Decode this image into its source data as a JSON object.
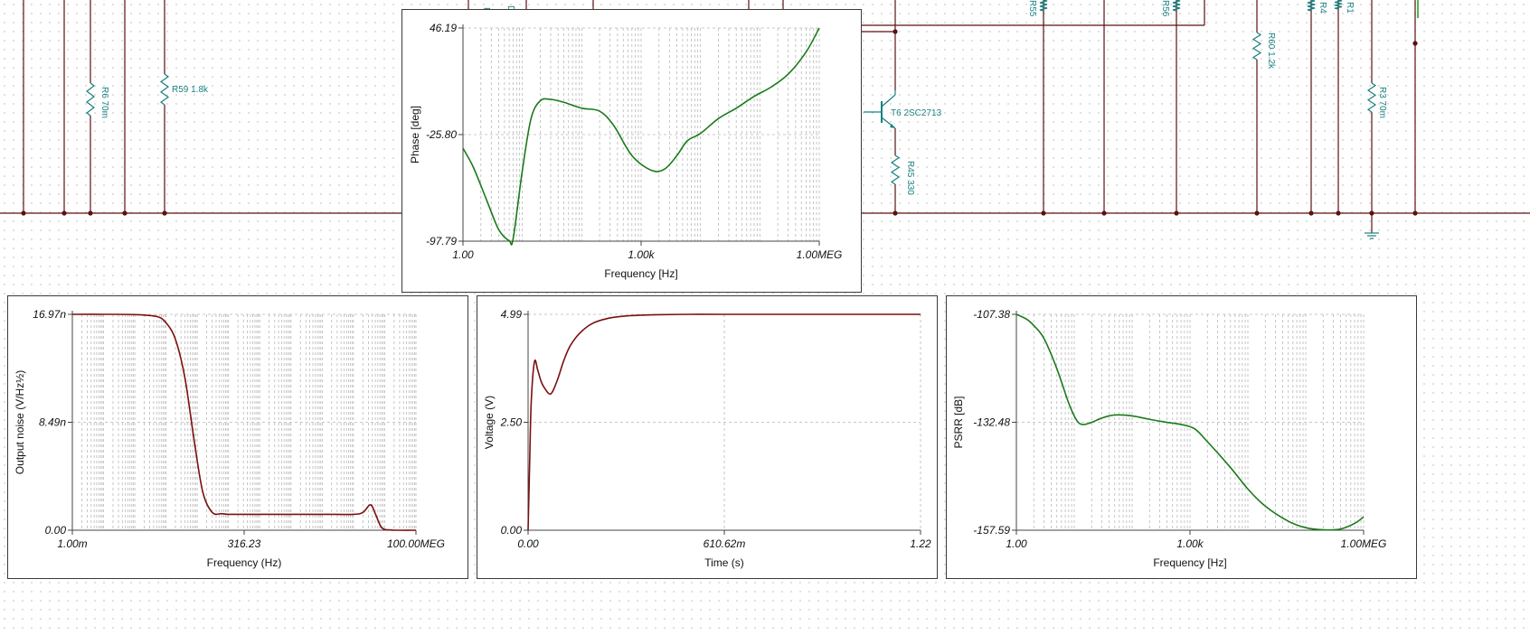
{
  "schematic": {
    "components": [
      {
        "id": "r6",
        "label": "R6 70m"
      },
      {
        "id": "r59",
        "label": "R59 1.8k"
      },
      {
        "id": "t6",
        "label": "T6 2SC2713"
      },
      {
        "id": "r45",
        "label": "R45 330"
      },
      {
        "id": "r60",
        "label": "R60 1.2k"
      },
      {
        "id": "r3",
        "label": "R3 70m"
      },
      {
        "id": "r55",
        "label": "R55"
      },
      {
        "id": "r56",
        "label": "R56"
      },
      {
        "id": "r4",
        "label": "R4"
      },
      {
        "id": "r1",
        "label": "R1"
      }
    ],
    "colors": {
      "wire": "#5c1010",
      "component": "#1a8080",
      "junction": "#5c1010"
    }
  },
  "chart_data": [
    {
      "id": "phase",
      "type": "line",
      "xscale": "log",
      "xlim": [
        1,
        1000000
      ],
      "ylim": [
        -97.79,
        46.19
      ],
      "xticks": [
        "1.00",
        "1.00k",
        "1.00MEG"
      ],
      "yticks": [
        "46.19",
        "-25.80",
        "-97.79"
      ],
      "xlabel": "Frequency [Hz]",
      "ylabel": "Phase [deg]",
      "color": "#1a7a1a",
      "series": [
        {
          "x": [
            1,
            1.5,
            2.5,
            4,
            6,
            7,
            10,
            14,
            20,
            30,
            50,
            100,
            200,
            350,
            700,
            1500,
            2500,
            4000,
            6000,
            10000,
            20000,
            40000,
            80000,
            150000,
            300000,
            600000,
            1000000
          ],
          "y": [
            -35,
            -48,
            -70,
            -90,
            -97.5,
            -96,
            -50,
            -15,
            -3,
            -2,
            -4,
            -8,
            -10,
            -20,
            -40,
            -50,
            -49,
            -40,
            -30,
            -25,
            -15,
            -8,
            0,
            6,
            15,
            30,
            46.19
          ]
        }
      ]
    },
    {
      "id": "noise",
      "type": "line",
      "xscale": "log",
      "xlim": [
        0.001,
        100000000
      ],
      "ylim": [
        0,
        16.97
      ],
      "xticks": [
        "1.00m",
        "316.23",
        "100.00MEG"
      ],
      "yticks": [
        "16.97n",
        "8.49n",
        "0.00"
      ],
      "xlabel": "Frequency (Hz)",
      "ylabel": "Output noise (V/Hz½)",
      "color": "#7a1010",
      "series": [
        {
          "x": [
            0.001,
            0.01,
            0.1,
            0.5,
            1,
            2,
            4,
            8,
            15,
            30,
            60,
            100,
            200,
            1000,
            10000,
            100000,
            1000000,
            2000000,
            3500000,
            5000000,
            8000000,
            15000000,
            30000000,
            100000000
          ],
          "y": [
            16.97,
            16.97,
            16.95,
            16.8,
            16.3,
            15.0,
            12.0,
            7.0,
            3.0,
            1.4,
            1.3,
            1.25,
            1.25,
            1.25,
            1.25,
            1.25,
            1.25,
            1.4,
            2.0,
            1.3,
            0.2,
            0.02,
            0,
            0
          ]
        }
      ]
    },
    {
      "id": "voltage",
      "type": "line",
      "xscale": "linear",
      "xlim": [
        0,
        1.22
      ],
      "ylim": [
        0,
        4.99
      ],
      "xticks": [
        "0.00",
        "610.62m",
        "1.22"
      ],
      "yticks": [
        "4.99",
        "2.50",
        "0.00"
      ],
      "xlabel": "Time (s)",
      "ylabel": "Voltage (V)",
      "color": "#7a1010",
      "series": [
        {
          "x": [
            0,
            0.005,
            0.01,
            0.02,
            0.03,
            0.04,
            0.05,
            0.07,
            0.09,
            0.11,
            0.13,
            0.16,
            0.2,
            0.25,
            0.3,
            0.35,
            0.4,
            0.5,
            0.6,
            0.8,
            1.0,
            1.22
          ],
          "y": [
            0,
            1.6,
            3.0,
            3.9,
            3.7,
            3.45,
            3.3,
            3.15,
            3.45,
            3.9,
            4.25,
            4.55,
            4.78,
            4.9,
            4.95,
            4.97,
            4.98,
            4.99,
            4.99,
            4.99,
            4.99,
            4.99
          ]
        }
      ]
    },
    {
      "id": "psrr",
      "type": "line",
      "xscale": "log",
      "xlim": [
        1,
        1000000
      ],
      "ylim": [
        -157.59,
        -107.38
      ],
      "xticks": [
        "1.00",
        "1.00k",
        "1.00MEG"
      ],
      "yticks": [
        "-107.38",
        "-132.48",
        "-157.59"
      ],
      "xlabel": "Frequency [Hz]",
      "ylabel": "PSRR [dB]",
      "color": "#1a7a1a",
      "series": [
        {
          "x": [
            1,
            1.5,
            2,
            3,
            5,
            8,
            11,
            14,
            20,
            30,
            50,
            100,
            200,
            400,
            700,
            1200,
            2000,
            5000,
            10000,
            20000,
            50000,
            100000,
            200000,
            400000,
            700000,
            1000000
          ],
          "y": [
            -107.38,
            -108.5,
            -110,
            -113,
            -120,
            -128,
            -132,
            -133,
            -132.5,
            -131.5,
            -130.8,
            -131,
            -131.8,
            -132.5,
            -133,
            -134,
            -137,
            -143,
            -148,
            -152,
            -155.5,
            -157,
            -157.5,
            -157.3,
            -156,
            -154.5
          ]
        }
      ]
    }
  ]
}
